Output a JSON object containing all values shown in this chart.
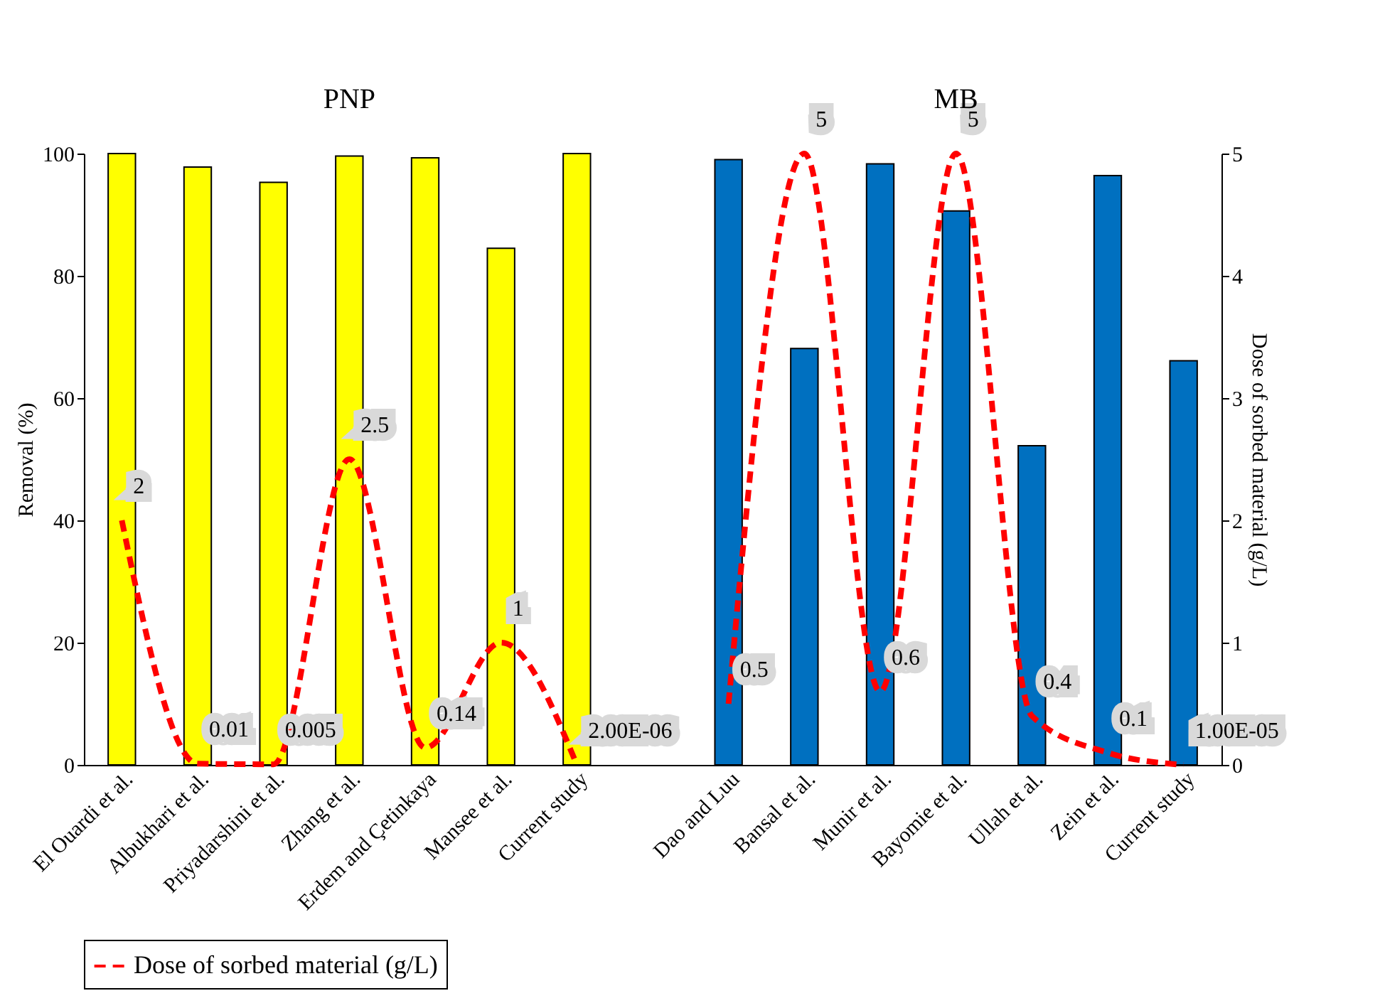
{
  "chart_data": {
    "type": "bar",
    "categories": [
      "El Ouardi et al.",
      "Albukhari et al.",
      "Priyadarshini et al.",
      "Zhang et al.",
      "Erdem and Çetinkaya",
      "Mansee et al.",
      "Current study",
      null,
      "Dao and Luu",
      "Bansal et al.",
      "Munir et al.",
      "Bayomie et al.",
      "Ullah et al.",
      "Zein et al.",
      "Current study"
    ],
    "series": [
      {
        "type": "bar",
        "colors": [
          "#ffff00",
          "#ffff00",
          "#ffff00",
          "#ffff00",
          "#ffff00",
          "#ffff00",
          "#ffff00",
          "#ffff00",
          "#0070c0",
          "#0070c0",
          "#0070c0",
          "#0070c0",
          "#0070c0",
          "#0070c0",
          "#0070c0"
        ],
        "values": [
          100,
          97.8,
          95.3,
          99.6,
          99.3,
          84.5,
          100,
          null,
          99.0,
          68.1,
          98.3,
          90.6,
          52.2,
          96.4,
          66.1
        ]
      },
      {
        "type": "line",
        "name": "Dose of sorbed material (g/L)",
        "axis": "y2",
        "color": "#ff0000",
        "line_style": "dashed",
        "values": [
          2,
          0.01,
          0.005,
          2.5,
          0.14,
          1,
          2e-06,
          null,
          0.5,
          5,
          0.6,
          5,
          0.4,
          0.1,
          1e-05
        ],
        "value_labels": [
          "2",
          "0.01",
          "0.005",
          "2.5",
          "0.14",
          "1",
          "2.00E-06",
          null,
          "0.5",
          "5",
          "0.6",
          "5",
          "0.4",
          "0.1",
          "1.00E-05"
        ]
      }
    ],
    "ylabel": "Removal (%)",
    "y2label": "Dose of sorbed material (g/L)",
    "ylim": [
      0,
      100
    ],
    "yticks": [
      0,
      20,
      40,
      60,
      80,
      100
    ],
    "y2lim": [
      0,
      5
    ],
    "y2ticks": [
      0,
      1,
      2,
      3,
      4,
      5
    ],
    "annotations": [
      "PNP",
      "MB"
    ],
    "grid": false,
    "legend": "bottom"
  }
}
